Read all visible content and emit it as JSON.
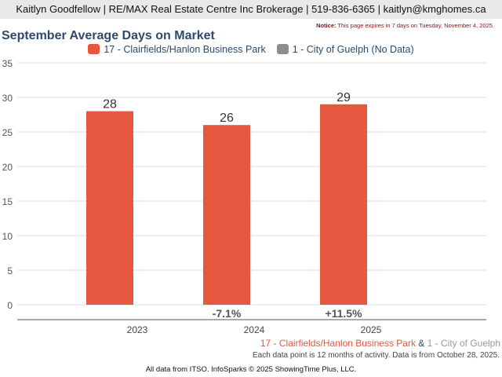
{
  "header": {
    "contact": "Kaitlyn Goodfellow | RE/MAX Real Estate Centre Inc Brokerage | 519-836-6365 | kaitlyn@kmghomes.ca",
    "notice_label": "Notice:",
    "notice_text": " This page expires in 7 days on Tuesday, November 4, 2025."
  },
  "colors": {
    "series1": "#e5573e",
    "series2": "#8a8f8e",
    "title": "#2d4a6b"
  },
  "chart_data": {
    "type": "bar",
    "title": "September Average Days on Market",
    "categories": [
      "2023",
      "2024",
      "2025"
    ],
    "series": [
      {
        "name": "17 - Clairfields/Hanlon Business Park",
        "values": [
          28,
          26,
          29
        ]
      },
      {
        "name": "1 - City of Guelph (No Data)",
        "values": [
          null,
          null,
          null
        ]
      }
    ],
    "change_labels": [
      "",
      "-7.1%",
      "+11.5%"
    ],
    "yticks": [
      0,
      5,
      10,
      15,
      20,
      25,
      30,
      35
    ],
    "ylim": [
      0,
      35
    ],
    "grid": true,
    "legend": "top-center"
  },
  "footer": {
    "area1": "17 - Clairfields/Hanlon Business Park",
    "amp": " & ",
    "area2": "1 - City of Guelph",
    "note": "Each data point is 12 months of activity. Data is from October 28, 2025.",
    "source": "All data from ITSO. InfoSparks © 2025 ShowingTime Plus, LLC."
  }
}
